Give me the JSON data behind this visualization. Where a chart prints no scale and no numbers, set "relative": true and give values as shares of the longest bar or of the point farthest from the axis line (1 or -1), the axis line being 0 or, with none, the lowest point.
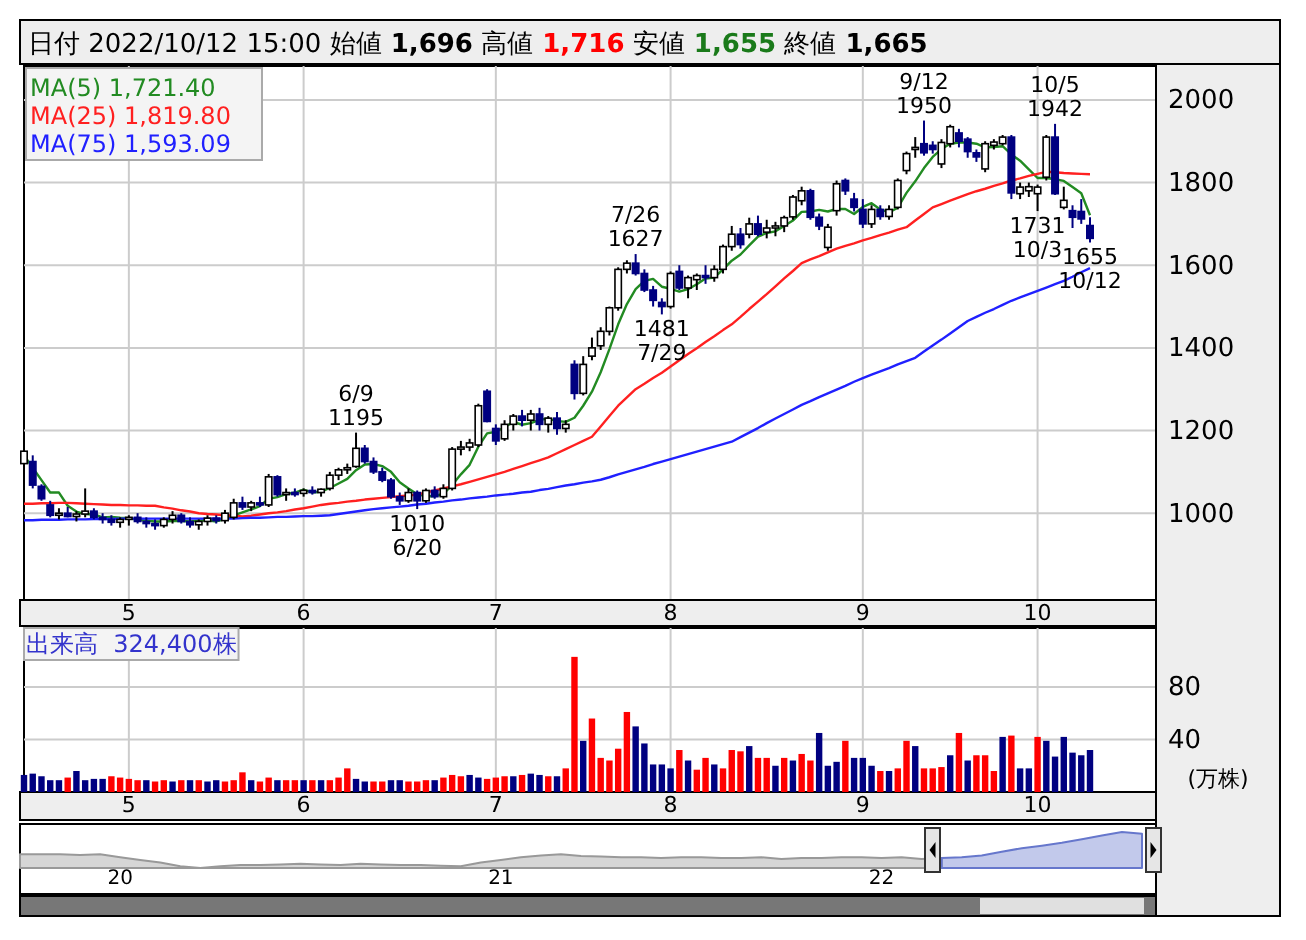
{
  "chart_data": [
    {
      "type": "candlestick",
      "title": "日付 2022/10/12 15:00 始値 1,696 高値 1,716 安値 1,655 終値 1,665",
      "categories": [
        null,
        null,
        null,
        null,
        null,
        null,
        null,
        null,
        null,
        null,
        null,
        null,
        "5",
        null,
        null,
        null,
        null,
        null,
        null,
        null,
        null,
        null,
        null,
        null,
        null,
        null,
        null,
        null,
        null,
        null,
        null,
        null,
        "6",
        null,
        null,
        null,
        null,
        null,
        null,
        null,
        null,
        null,
        null,
        null,
        null,
        null,
        null,
        null,
        null,
        null,
        null,
        null,
        null,
        null,
        "7",
        null,
        null,
        null,
        null,
        null,
        null,
        null,
        null,
        null,
        null,
        null,
        null,
        null,
        null,
        null,
        null,
        null,
        null,
        null,
        "8",
        null,
        null,
        null,
        null,
        null,
        null,
        null,
        null,
        null,
        null,
        null,
        null,
        null,
        null,
        null,
        null,
        null,
        null,
        null,
        null,
        null,
        "9",
        null,
        null,
        null,
        null,
        null,
        null,
        null,
        null,
        null,
        null,
        null,
        null,
        null,
        null,
        null,
        null,
        null,
        null,
        null,
        "10",
        null,
        null,
        null,
        null,
        null,
        null
      ],
      "ohlc": [
        [
          1120,
          1170,
          1110,
          1150
        ],
        [
          1125,
          1140,
          1060,
          1068
        ],
        [
          1065,
          1070,
          1030,
          1035
        ],
        [
          1020,
          1030,
          990,
          995
        ],
        [
          995,
          1012,
          985,
          1000
        ],
        [
          1000,
          1015,
          990,
          992
        ],
        [
          992,
          1005,
          980,
          998
        ],
        [
          998,
          1060,
          990,
          1005
        ],
        [
          1005,
          1012,
          985,
          990
        ],
        [
          990,
          1000,
          975,
          985
        ],
        [
          985,
          995,
          970,
          978
        ],
        [
          978,
          990,
          965,
          985
        ],
        [
          985,
          995,
          970,
          990
        ],
        [
          990,
          1000,
          975,
          980
        ],
        [
          980,
          990,
          965,
          975
        ],
        [
          975,
          985,
          960,
          970
        ],
        [
          970,
          990,
          965,
          985
        ],
        [
          985,
          1005,
          975,
          995
        ],
        [
          995,
          1000,
          975,
          980
        ],
        [
          980,
          990,
          965,
          972
        ],
        [
          972,
          985,
          960,
          980
        ],
        [
          980,
          995,
          970,
          988
        ],
        [
          988,
          995,
          975,
          982
        ],
        [
          982,
          1008,
          975,
          1000
        ],
        [
          990,
          1035,
          985,
          1025
        ],
        [
          1025,
          1040,
          1008,
          1015
        ],
        [
          1015,
          1030,
          1005,
          1025
        ],
        [
          1025,
          1040,
          1015,
          1020
        ],
        [
          1020,
          1095,
          1015,
          1088
        ],
        [
          1088,
          1092,
          1040,
          1045
        ],
        [
          1045,
          1060,
          1030,
          1050
        ],
        [
          1050,
          1060,
          1040,
          1048
        ],
        [
          1048,
          1060,
          1040,
          1055
        ],
        [
          1055,
          1065,
          1045,
          1050
        ],
        [
          1050,
          1060,
          1040,
          1058
        ],
        [
          1060,
          1100,
          1055,
          1092
        ],
        [
          1092,
          1110,
          1080,
          1105
        ],
        [
          1105,
          1120,
          1095,
          1110
        ],
        [
          1113,
          1195,
          1110,
          1157
        ],
        [
          1157,
          1165,
          1120,
          1125
        ],
        [
          1125,
          1135,
          1095,
          1100
        ],
        [
          1100,
          1110,
          1075,
          1080
        ],
        [
          1080,
          1085,
          1035,
          1040
        ],
        [
          1040,
          1050,
          1020,
          1030
        ],
        [
          1030,
          1060,
          1025,
          1050
        ],
        [
          1050,
          1055,
          1010,
          1030
        ],
        [
          1030,
          1060,
          1025,
          1055
        ],
        [
          1055,
          1065,
          1035,
          1040
        ],
        [
          1040,
          1070,
          1035,
          1060
        ],
        [
          1060,
          1160,
          1055,
          1155
        ],
        [
          1155,
          1175,
          1140,
          1160
        ],
        [
          1160,
          1180,
          1150,
          1170
        ],
        [
          1165,
          1265,
          1160,
          1260
        ],
        [
          1295,
          1300,
          1220,
          1222
        ],
        [
          1205,
          1215,
          1165,
          1175
        ],
        [
          1180,
          1225,
          1175,
          1215
        ],
        [
          1215,
          1240,
          1200,
          1235
        ],
        [
          1235,
          1250,
          1210,
          1225
        ],
        [
          1225,
          1250,
          1200,
          1240
        ],
        [
          1240,
          1255,
          1200,
          1215
        ],
        [
          1215,
          1235,
          1195,
          1230
        ],
        [
          1230,
          1245,
          1190,
          1205
        ],
        [
          1205,
          1225,
          1195,
          1215
        ],
        [
          1360,
          1370,
          1275,
          1290
        ],
        [
          1290,
          1380,
          1285,
          1360
        ],
        [
          1380,
          1425,
          1370,
          1400
        ],
        [
          1405,
          1450,
          1395,
          1440
        ],
        [
          1440,
          1500,
          1430,
          1497
        ],
        [
          1497,
          1595,
          1490,
          1590
        ],
        [
          1590,
          1612,
          1580,
          1605
        ],
        [
          1605,
          1627,
          1575,
          1580
        ],
        [
          1580,
          1590,
          1535,
          1540
        ],
        [
          1540,
          1550,
          1500,
          1515
        ],
        [
          1510,
          1520,
          1481,
          1500
        ],
        [
          1500,
          1585,
          1495,
          1580
        ],
        [
          1585,
          1600,
          1540,
          1545
        ],
        [
          1545,
          1575,
          1520,
          1570
        ],
        [
          1565,
          1580,
          1540,
          1575
        ],
        [
          1575,
          1600,
          1555,
          1570
        ],
        [
          1570,
          1600,
          1560,
          1590
        ],
        [
          1590,
          1650,
          1580,
          1645
        ],
        [
          1645,
          1695,
          1635,
          1675
        ],
        [
          1675,
          1690,
          1640,
          1650
        ],
        [
          1675,
          1715,
          1665,
          1700
        ],
        [
          1700,
          1720,
          1670,
          1675
        ],
        [
          1680,
          1710,
          1665,
          1690
        ],
        [
          1690,
          1705,
          1670,
          1695
        ],
        [
          1695,
          1720,
          1680,
          1715
        ],
        [
          1717,
          1770,
          1710,
          1765
        ],
        [
          1756,
          1790,
          1745,
          1780
        ],
        [
          1780,
          1785,
          1710,
          1716
        ],
        [
          1716,
          1725,
          1685,
          1695
        ],
        [
          1643,
          1700,
          1635,
          1692
        ],
        [
          1732,
          1805,
          1720,
          1797
        ],
        [
          1805,
          1810,
          1770,
          1780
        ],
        [
          1760,
          1775,
          1730,
          1740
        ],
        [
          1735,
          1760,
          1690,
          1700
        ],
        [
          1700,
          1745,
          1690,
          1735
        ],
        [
          1735,
          1745,
          1710,
          1718
        ],
        [
          1718,
          1745,
          1710,
          1735
        ],
        [
          1740,
          1810,
          1735,
          1805
        ],
        [
          1829,
          1875,
          1820,
          1870
        ],
        [
          1880,
          1910,
          1860,
          1885
        ],
        [
          1894,
          1950,
          1865,
          1872
        ],
        [
          1890,
          1900,
          1870,
          1880
        ],
        [
          1845,
          1905,
          1835,
          1897
        ],
        [
          1894,
          1940,
          1885,
          1935
        ],
        [
          1920,
          1930,
          1885,
          1900
        ],
        [
          1905,
          1910,
          1860,
          1875
        ],
        [
          1872,
          1880,
          1850,
          1862
        ],
        [
          1833,
          1900,
          1825,
          1894
        ],
        [
          1890,
          1905,
          1880,
          1898
        ],
        [
          1894,
          1915,
          1890,
          1910
        ],
        [
          1910,
          1915,
          1760,
          1775
        ],
        [
          1773,
          1800,
          1760,
          1789
        ],
        [
          1780,
          1800,
          1765,
          1790
        ],
        [
          1773,
          1795,
          1731,
          1789
        ],
        [
          1813,
          1915,
          1805,
          1910
        ],
        [
          1910,
          1942,
          1770,
          1773
        ],
        [
          1740,
          1790,
          1735,
          1757
        ],
        [
          1732,
          1745,
          1690,
          1716
        ],
        [
          1730,
          1760,
          1700,
          1712
        ],
        [
          1696,
          1716,
          1655,
          1665
        ]
      ],
      "series": [
        {
          "type": "line",
          "name": "MA(5) 1,721.40",
          "color": "#228b22",
          "values": [
            1140,
            1110,
            1080,
            1050,
            1050,
            1018,
            1004,
            998,
            997,
            990,
            991,
            989,
            988,
            984,
            982,
            980,
            980,
            981,
            981,
            980,
            982,
            983,
            980,
            986,
            995,
            1002,
            1009,
            1017,
            1035,
            1039,
            1046,
            1050,
            1057,
            1050,
            1052,
            1061,
            1072,
            1083,
            1104,
            1118,
            1119,
            1114,
            1100,
            1075,
            1060,
            1046,
            1041,
            1041,
            1047,
            1068,
            1094,
            1117,
            1161,
            1193,
            1197,
            1208,
            1221,
            1214,
            1218,
            1226,
            1229,
            1223,
            1221,
            1231,
            1260,
            1294,
            1341,
            1397,
            1457,
            1506,
            1542,
            1562,
            1567,
            1548,
            1543,
            1536,
            1542,
            1554,
            1568,
            1570,
            1590,
            1611,
            1626,
            1648,
            1669,
            1678,
            1682,
            1695,
            1708,
            1729,
            1730,
            1734,
            1730,
            1736,
            1736,
            1724,
            1741,
            1750,
            1735,
            1728,
            1739,
            1775,
            1803,
            1835,
            1862,
            1881,
            1894,
            1897,
            1897,
            1894,
            1885,
            1886,
            1888,
            1868,
            1853,
            1832,
            1811,
            1811,
            1808,
            1804,
            1789,
            1774,
            1721
          ]
        },
        {
          "type": "line",
          "name": "MA(25) 1,819.80",
          "color": "#ff2020",
          "values": [
            1023,
            1023,
            1024,
            1024,
            1025,
            1025,
            1024,
            1023,
            1022,
            1021,
            1020,
            1020,
            1019,
            1019,
            1018,
            1018,
            1014,
            1011,
            1007,
            1004,
            1000,
            998,
            997,
            995,
            994,
            992,
            994,
            997,
            1000,
            1002,
            1005,
            1009,
            1012,
            1016,
            1020,
            1023,
            1025,
            1028,
            1030,
            1033,
            1035,
            1037,
            1039,
            1041,
            1043,
            1045,
            1050,
            1055,
            1060,
            1065,
            1070,
            1076,
            1082,
            1088,
            1094,
            1100,
            1107,
            1114,
            1121,
            1128,
            1135,
            1145,
            1155,
            1165,
            1175,
            1185,
            1210,
            1235,
            1260,
            1280,
            1300,
            1313,
            1327,
            1340,
            1355,
            1370,
            1385,
            1399,
            1414,
            1428,
            1443,
            1457,
            1475,
            1494,
            1512,
            1530,
            1549,
            1568,
            1586,
            1605,
            1614,
            1622,
            1631,
            1640,
            1647,
            1653,
            1660,
            1666,
            1673,
            1679,
            1686,
            1692,
            1708,
            1724,
            1740,
            1748,
            1756,
            1764,
            1772,
            1779,
            1785,
            1792,
            1798,
            1805,
            1810,
            1816,
            1821,
            1826,
            1825,
            1823,
            1822,
            1821,
            1820
          ]
        },
        {
          "type": "line",
          "name": "MA(75) 1,593.09",
          "color": "#2020ff",
          "values": [
            983,
            983,
            984,
            984,
            984,
            985,
            985,
            985,
            986,
            986,
            986,
            987,
            987,
            987,
            987,
            987,
            987,
            987,
            987,
            987,
            987,
            987,
            987,
            987,
            987,
            988,
            989,
            989,
            990,
            991,
            991,
            992,
            993,
            993,
            994,
            995,
            998,
            1001,
            1004,
            1007,
            1010,
            1012,
            1014,
            1016,
            1018,
            1021,
            1023,
            1026,
            1028,
            1031,
            1033,
            1036,
            1038,
            1040,
            1043,
            1045,
            1047,
            1050,
            1052,
            1056,
            1059,
            1063,
            1067,
            1070,
            1074,
            1077,
            1081,
            1087,
            1094,
            1100,
            1106,
            1112,
            1119,
            1125,
            1131,
            1137,
            1143,
            1149,
            1155,
            1161,
            1167,
            1173,
            1184,
            1195,
            1206,
            1218,
            1229,
            1240,
            1251,
            1262,
            1271,
            1281,
            1290,
            1299,
            1308,
            1318,
            1327,
            1335,
            1343,
            1351,
            1360,
            1368,
            1376,
            1391,
            1406,
            1420,
            1435,
            1450,
            1465,
            1475,
            1485,
            1494,
            1504,
            1514,
            1522,
            1530,
            1538,
            1546,
            1554,
            1562,
            1572,
            1583,
            1593
          ]
        }
      ],
      "ylim": [
        790,
        2082
      ],
      "yticks": [
        1000,
        1200,
        1400,
        1600,
        1800,
        2000
      ],
      "grid": true,
      "legend": "top left",
      "annotations": [
        {
          "text": "6/9\n1195",
          "y": 1195
        },
        {
          "text": "1010\n6/20",
          "y": 1010
        },
        {
          "text": "7/26\n1627",
          "y": 1627
        },
        {
          "text": "1481\n7/29",
          "y": 1481
        },
        {
          "text": "9/12\n1950",
          "y": 1950
        },
        {
          "text": "10/5\n1942",
          "y": 1942
        },
        {
          "text": "1731\n10/3",
          "y": 1731
        },
        {
          "text": "1655\n10/12",
          "y": 1655
        }
      ]
    },
    {
      "type": "bar",
      "title": "出来高  324,400株",
      "categories": [
        null,
        null,
        null,
        null,
        null,
        null,
        null,
        null,
        null,
        null,
        null,
        null,
        "5",
        null,
        null,
        null,
        null,
        null,
        null,
        null,
        null,
        null,
        null,
        null,
        null,
        null,
        null,
        null,
        null,
        null,
        null,
        null,
        "6",
        null,
        null,
        null,
        null,
        null,
        null,
        null,
        null,
        null,
        null,
        null,
        null,
        null,
        null,
        null,
        null,
        null,
        null,
        null,
        null,
        null,
        "7",
        null,
        null,
        null,
        null,
        null,
        null,
        null,
        null,
        null,
        null,
        null,
        null,
        null,
        null,
        null,
        null,
        null,
        null,
        null,
        "8",
        null,
        null,
        null,
        null,
        null,
        null,
        null,
        null,
        null,
        null,
        null,
        null,
        null,
        null,
        null,
        null,
        null,
        null,
        null,
        null,
        null,
        "9",
        null,
        null,
        null,
        null,
        null,
        null,
        null,
        null,
        null,
        null,
        null,
        null,
        null,
        null,
        null,
        null,
        null,
        null,
        null,
        "10",
        null,
        null,
        null,
        null,
        null,
        null
      ],
      "values": [
        13,
        14,
        12,
        9,
        9,
        11,
        16,
        9,
        10,
        10,
        12,
        11,
        10,
        9,
        9,
        8,
        9,
        8,
        9,
        9,
        9,
        8,
        9,
        8,
        9,
        15,
        9,
        8,
        11,
        9,
        9,
        9,
        9,
        9,
        9,
        9,
        11,
        18,
        10,
        8,
        8,
        8,
        9,
        9,
        8,
        8,
        9,
        9,
        11,
        13,
        12,
        13,
        11,
        10,
        11,
        12,
        12,
        13,
        14,
        13,
        12,
        12,
        18,
        103,
        39,
        56,
        26,
        24,
        33,
        61,
        50,
        37,
        21,
        21,
        18,
        32,
        24,
        17,
        26,
        21,
        18,
        32,
        31,
        35,
        26,
        26,
        20,
        26,
        24,
        29,
        24,
        45,
        20,
        23,
        39,
        26,
        26,
        20,
        16,
        16,
        18,
        39,
        35,
        18,
        18,
        19,
        28,
        45,
        24,
        28,
        28,
        16,
        42,
        43,
        18,
        18,
        42,
        39,
        27,
        42,
        30,
        28,
        32
      ],
      "colors": [
        "#000080",
        "#000080",
        "#000080",
        "#000080",
        "#000080",
        "#ff0000",
        "#000080",
        "#000080",
        "#000080",
        "#000080",
        "#ff0000",
        "#ff0000",
        "#ff0000",
        "#ff0000",
        "#000080",
        "#ff0000",
        "#ff0000",
        "#000080",
        "#ff0000",
        "#000080",
        "#ff0000",
        "#000080",
        "#000080",
        "#ff0000",
        "#ff0000",
        "#ff0000",
        "#000080",
        "#ff0000",
        "#ff0000",
        "#000080",
        "#ff0000",
        "#ff0000",
        "#000080",
        "#ff0000",
        "#000080",
        "#ff0000",
        "#ff0000",
        "#ff0000",
        "#000080",
        "#000080",
        "#ff0000",
        "#ff0000",
        "#000080",
        "#000080",
        "#ff0000",
        "#ff0000",
        "#ff0000",
        "#000080",
        "#ff0000",
        "#ff0000",
        "#ff0000",
        "#000080",
        "#000080",
        "#ff0000",
        "#ff0000",
        "#ff0000",
        "#000080",
        "#ff0000",
        "#000080",
        "#000080",
        "#ff0000",
        "#000080",
        "#ff0000",
        "#ff0000",
        "#000080",
        "#ff0000",
        "#ff0000",
        "#ff0000",
        "#ff0000",
        "#ff0000",
        "#000080",
        "#000080",
        "#000080",
        "#000080",
        "#000080",
        "#ff0000",
        "#000080",
        "#ff0000",
        "#ff0000",
        "#000080",
        "#ff0000",
        "#ff0000",
        "#ff0000",
        "#000080",
        "#ff0000",
        "#ff0000",
        "#000080",
        "#ff0000",
        "#000080",
        "#ff0000",
        "#ff0000",
        "#000080",
        "#000080",
        "#000080",
        "#ff0000",
        "#000080",
        "#000080",
        "#000080",
        "#ff0000",
        "#000080",
        "#ff0000",
        "#ff0000",
        "#000080",
        "#ff0000",
        "#ff0000",
        "#ff0000",
        "#000080",
        "#ff0000",
        "#000080",
        "#ff0000",
        "#ff0000",
        "#ff0000",
        "#000080",
        "#ff0000",
        "#000080",
        "#000080",
        "#ff0000",
        "#000080",
        "#000080",
        "#000080",
        "#000080",
        "#000080",
        "#000080"
      ],
      "ylim": [
        0,
        125
      ],
      "yticks": [
        40,
        80
      ],
      "ylabel": "(万株)",
      "grid": true
    },
    {
      "type": "area",
      "relative": true,
      "categories": [
        null,
        null,
        null,
        null,
        null,
        "20",
        null,
        null,
        null,
        null,
        null,
        null,
        null,
        null,
        null,
        null,
        null,
        null,
        null,
        null,
        null,
        null,
        null,
        null,
        "21",
        null,
        null,
        null,
        null,
        null,
        null,
        null,
        null,
        null,
        null,
        null,
        null,
        null,
        null,
        null,
        null,
        null,
        null,
        "22",
        null,
        null,
        null,
        null,
        null,
        null,
        null,
        null,
        null,
        null,
        null,
        null,
        null
      ],
      "series": [
        {
          "color": "#999999",
          "values": [
            0.38,
            0.38,
            0.38,
            0.36,
            0.38,
            0.3,
            0.22,
            0.15,
            0.05,
            0.0,
            0.05,
            0.08,
            0.08,
            0.1,
            0.12,
            0.1,
            0.08,
            0.12,
            0.1,
            0.08,
            0.08,
            0.06,
            0.05,
            0.15,
            0.22,
            0.3,
            0.35,
            0.38,
            0.33,
            0.32,
            0.3,
            0.3,
            0.28,
            0.3,
            0.3,
            0.28,
            0.28,
            0.3,
            0.25,
            0.28,
            0.28,
            0.3,
            0.3,
            0.28,
            0.3,
            0.25,
            0.28,
            null,
            null,
            null,
            null,
            null,
            null,
            null,
            null,
            null,
            null
          ]
        },
        {
          "color": "#6677cc",
          "values": [
            null,
            null,
            null,
            null,
            null,
            null,
            null,
            null,
            null,
            null,
            null,
            null,
            null,
            null,
            null,
            null,
            null,
            null,
            null,
            null,
            null,
            null,
            null,
            null,
            null,
            null,
            null,
            null,
            null,
            null,
            null,
            null,
            null,
            null,
            null,
            null,
            null,
            null,
            null,
            null,
            null,
            null,
            null,
            null,
            null,
            null,
            0.28,
            0.3,
            0.35,
            0.45,
            0.55,
            0.62,
            0.7,
            0.8,
            0.9,
            1.0,
            0.95
          ]
        }
      ]
    }
  ]
}
